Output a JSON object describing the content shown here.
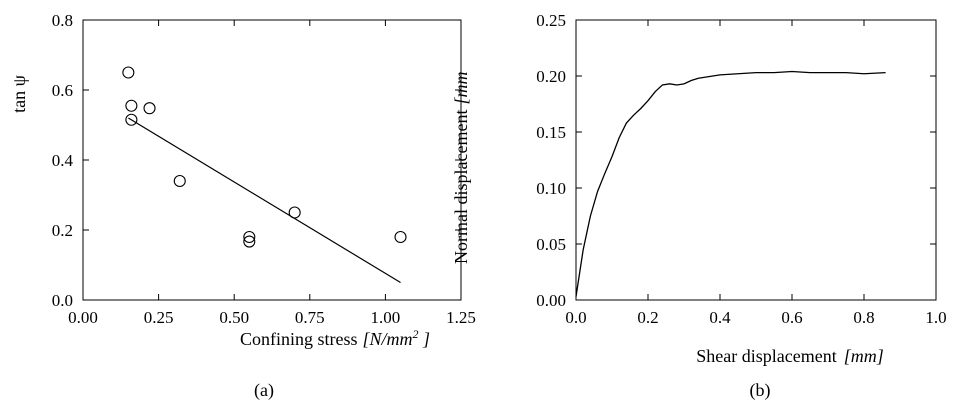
{
  "chart_data": [
    {
      "type": "scatter",
      "panel_label": "(a)",
      "xlabel": "Confining stress",
      "xlabel_unit": "[N/mm",
      "xlabel_unit_sup": "2",
      "xlabel_unit_end": " ]",
      "ylabel": "tan ψ",
      "xlim": [
        0.0,
        1.25
      ],
      "ylim": [
        0.0,
        0.8
      ],
      "xticks": [
        "0.00",
        "0.25",
        "0.50",
        "0.75",
        "1.00",
        "1.25"
      ],
      "yticks": [
        "0.0",
        "0.2",
        "0.4",
        "0.6",
        "0.8"
      ],
      "points": [
        {
          "x": 0.15,
          "y": 0.65
        },
        {
          "x": 0.16,
          "y": 0.555
        },
        {
          "x": 0.16,
          "y": 0.515
        },
        {
          "x": 0.22,
          "y": 0.548
        },
        {
          "x": 0.32,
          "y": 0.34
        },
        {
          "x": 0.55,
          "y": 0.18
        },
        {
          "x": 0.55,
          "y": 0.167
        },
        {
          "x": 0.7,
          "y": 0.25
        },
        {
          "x": 1.05,
          "y": 0.18
        }
      ],
      "fit_line": {
        "x": [
          0.15,
          1.05
        ],
        "y": [
          0.52,
          0.05
        ]
      },
      "grid": false
    },
    {
      "type": "line",
      "panel_label": "(b)",
      "xlabel": "Shear displacement",
      "xlabel_unit": "[mm]",
      "ylabel": "Normal displacement",
      "ylabel_unit": "[mm",
      "xlim": [
        0.0,
        1.0
      ],
      "ylim": [
        0.0,
        0.25
      ],
      "xticks": [
        "0.0",
        "0.2",
        "0.4",
        "0.6",
        "0.8",
        "1.0"
      ],
      "yticks": [
        "0.00",
        "0.05",
        "0.10",
        "0.15",
        "0.20",
        "0.25"
      ],
      "series": [
        {
          "x": [
            0.0,
            0.02,
            0.04,
            0.06,
            0.08,
            0.1,
            0.12,
            0.14,
            0.16,
            0.18,
            0.2,
            0.22,
            0.24,
            0.26,
            0.28,
            0.3,
            0.32,
            0.34,
            0.36,
            0.4,
            0.45,
            0.5,
            0.55,
            0.6,
            0.65,
            0.7,
            0.75,
            0.8,
            0.86
          ],
          "y": [
            0.003,
            0.045,
            0.075,
            0.097,
            0.113,
            0.128,
            0.145,
            0.158,
            0.165,
            0.171,
            0.178,
            0.186,
            0.192,
            0.193,
            0.192,
            0.193,
            0.196,
            0.198,
            0.199,
            0.201,
            0.202,
            0.203,
            0.203,
            0.204,
            0.203,
            0.203,
            0.203,
            0.202,
            0.203
          ]
        }
      ],
      "grid": false
    }
  ]
}
